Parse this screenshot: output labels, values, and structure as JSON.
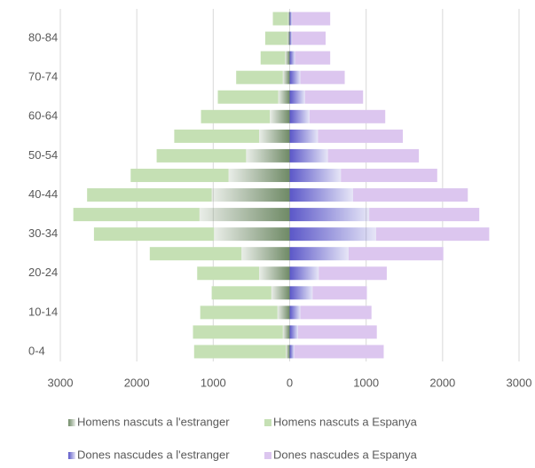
{
  "chart_data": {
    "type": "pyramid",
    "categories": [
      "0-4",
      null,
      "10-14",
      null,
      "20-24",
      null,
      "30-34",
      null,
      "40-44",
      null,
      "50-54",
      null,
      "60-64",
      null,
      "70-74",
      null,
      "80-84",
      null
    ],
    "series": [
      {
        "name": "Homens nascuts a l'estranger",
        "color": "#6f8a66",
        "gradient": true,
        "values": [
          -50,
          -90,
          -160,
          -240,
          -400,
          -630,
          -990,
          -1180,
          -1020,
          -800,
          -570,
          -400,
          -260,
          -150,
          -90,
          -60,
          -30,
          -20
        ]
      },
      {
        "name": "Homens nascuts a Espanya",
        "color": "#c5e0b4",
        "gradient": false,
        "values": [
          -1200,
          -1175,
          -1010,
          -780,
          -810,
          -1200,
          -1570,
          -1650,
          -1630,
          -1280,
          -1170,
          -1110,
          -900,
          -790,
          -610,
          -320,
          -290,
          -200
        ]
      },
      {
        "name": "Dones nascudes a l'estranger",
        "color": "#5b57c8",
        "gradient": true,
        "values": [
          60,
          110,
          140,
          300,
          380,
          770,
          1130,
          1040,
          830,
          670,
          500,
          370,
          260,
          200,
          140,
          70,
          30,
          30
        ]
      },
      {
        "name": "Dones nascudes a Espanya",
        "color": "#dcc6ef",
        "gradient": false,
        "values": [
          1170,
          1030,
          930,
          710,
          890,
          1240,
          1480,
          1440,
          1500,
          1260,
          1190,
          1110,
          990,
          760,
          580,
          460,
          440,
          500
        ]
      }
    ],
    "xlim": [
      -3000,
      3000
    ],
    "xticks": [
      {
        "value": -3000,
        "label": "3000"
      },
      {
        "value": -2000,
        "label": "2000"
      },
      {
        "value": -1000,
        "label": "1000"
      },
      0,
      1000,
      2000,
      3000
    ],
    "grid": true,
    "legend": "bottom"
  }
}
